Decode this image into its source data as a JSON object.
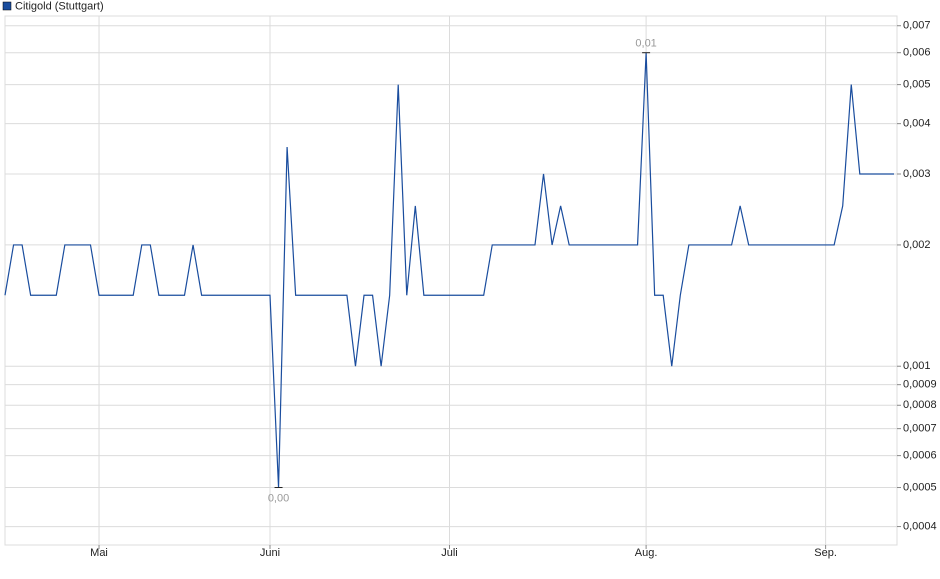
{
  "chart_data": {
    "type": "line",
    "log_y": true,
    "grid": true,
    "legend": "top-left",
    "categories": [
      null,
      null,
      null,
      null,
      null,
      null,
      null,
      null,
      null,
      null,
      null,
      "Mai",
      null,
      null,
      null,
      null,
      null,
      null,
      null,
      null,
      null,
      null,
      null,
      null,
      null,
      null,
      null,
      null,
      null,
      null,
      null,
      "Juni",
      null,
      null,
      null,
      null,
      null,
      null,
      null,
      null,
      null,
      null,
      null,
      null,
      null,
      null,
      null,
      null,
      null,
      null,
      null,
      null,
      "Juli",
      null,
      null,
      null,
      null,
      null,
      null,
      null,
      null,
      null,
      null,
      null,
      null,
      null,
      null,
      null,
      null,
      null,
      null,
      null,
      null,
      null,
      null,
      "Aug.",
      null,
      null,
      null,
      null,
      null,
      null,
      null,
      null,
      null,
      null,
      null,
      null,
      null,
      null,
      null,
      null,
      null,
      null,
      null,
      null,
      "Sep.",
      null,
      null,
      null,
      null,
      null,
      null,
      null,
      null
    ],
    "series": [
      {
        "name": "Citigold (Stuttgart)",
        "color": "#1a4d9e",
        "values": [
          0.0015,
          0.002,
          0.002,
          0.0015,
          0.0015,
          0.0015,
          0.0015,
          0.002,
          0.002,
          0.002,
          0.002,
          0.0015,
          0.0015,
          0.0015,
          0.0015,
          0.0015,
          0.002,
          0.002,
          0.0015,
          0.0015,
          0.0015,
          0.0015,
          0.002,
          0.0015,
          0.0015,
          0.0015,
          0.0015,
          0.0015,
          0.0015,
          0.0015,
          0.0015,
          0.0015,
          0.0005,
          0.0035,
          0.0015,
          0.0015,
          0.0015,
          0.0015,
          0.0015,
          0.0015,
          0.0015,
          0.001,
          0.0015,
          0.0015,
          0.001,
          0.0015,
          0.005,
          0.0015,
          0.0025,
          0.0015,
          0.0015,
          0.0015,
          0.0015,
          0.0015,
          0.0015,
          0.0015,
          0.0015,
          0.002,
          0.002,
          0.002,
          0.002,
          0.002,
          0.002,
          0.003,
          0.002,
          0.0025,
          0.002,
          0.002,
          0.002,
          0.002,
          0.002,
          0.002,
          0.002,
          0.002,
          0.002,
          0.006,
          0.0015,
          0.0015,
          0.001,
          0.0015,
          0.002,
          0.002,
          0.002,
          0.002,
          0.002,
          0.002,
          0.0025,
          0.002,
          0.002,
          0.002,
          0.002,
          0.002,
          0.002,
          0.002,
          0.002,
          0.002,
          0.002,
          0.002,
          0.0025,
          0.005,
          0.003,
          0.003,
          0.003,
          0.003,
          0.003
        ],
        "value_labels": [
          null,
          null,
          null,
          null,
          null,
          null,
          null,
          null,
          null,
          null,
          null,
          null,
          null,
          null,
          null,
          null,
          null,
          null,
          null,
          null,
          null,
          null,
          null,
          null,
          null,
          null,
          null,
          null,
          null,
          null,
          null,
          null,
          "0,00",
          null,
          null,
          null,
          null,
          null,
          null,
          null,
          null,
          null,
          null,
          null,
          null,
          null,
          null,
          null,
          null,
          null,
          null,
          null,
          null,
          null,
          null,
          null,
          null,
          null,
          null,
          null,
          null,
          null,
          null,
          null,
          null,
          null,
          null,
          null,
          null,
          null,
          null,
          null,
          null,
          null,
          null,
          "0,01",
          null,
          null,
          null,
          null,
          null,
          null,
          null,
          null,
          null,
          null,
          null,
          null,
          null,
          null,
          null,
          null,
          null,
          null,
          null,
          null,
          null,
          null,
          null,
          null,
          null,
          null,
          null,
          null,
          null
        ]
      }
    ],
    "ylim": [
      0.00036,
      0.0074
    ],
    "yticks": [
      {
        "value": 0.0004,
        "label": "0,0004"
      },
      {
        "value": 0.0005,
        "label": "0,0005"
      },
      {
        "value": 0.0006,
        "label": "0,0006"
      },
      {
        "value": 0.0007,
        "label": "0,0007"
      },
      {
        "value": 0.0008,
        "label": "0,0008"
      },
      {
        "value": 0.0009,
        "label": "0,0009"
      },
      {
        "value": 0.001,
        "label": "0,001"
      },
      {
        "value": 0.002,
        "label": "0,002"
      },
      {
        "value": 0.003,
        "label": "0,003"
      },
      {
        "value": 0.004,
        "label": "0,004"
      },
      {
        "value": 0.005,
        "label": "0,005"
      },
      {
        "value": 0.006,
        "label": "0,006"
      },
      {
        "value": 0.007,
        "label": "0,007"
      }
    ]
  }
}
